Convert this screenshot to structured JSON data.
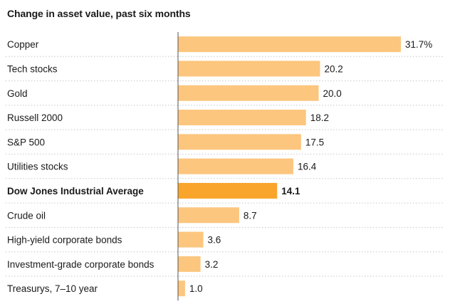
{
  "chart_data": {
    "type": "bar",
    "orientation": "horizontal",
    "title": "Change in asset value, past six months",
    "categories": [
      "Copper",
      "Tech stocks",
      "Gold",
      "Russell 2000",
      "S&P 500",
      "Utilities stocks",
      "Dow Jones Industrial Average",
      "Crude oil",
      "High-yield corporate bonds",
      "Investment-grade corporate bonds",
      "Treasurys, 7–10 year"
    ],
    "values": [
      31.7,
      20.2,
      20.0,
      18.2,
      17.5,
      16.4,
      14.1,
      8.7,
      3.6,
      3.2,
      1.0
    ],
    "value_labels": [
      "31.7%",
      "20.2",
      "20.0",
      "18.2",
      "17.5",
      "16.4",
      "14.1",
      "8.7",
      "3.6",
      "3.2",
      "1.0"
    ],
    "highlight": "Dow Jones Industrial Average",
    "unit": "%",
    "xlim": [
      0,
      32
    ],
    "colors": {
      "bar": "#fcc67e",
      "highlight": "#f9a42b",
      "axis": "#555555",
      "grid": "#c8c8c8"
    }
  }
}
